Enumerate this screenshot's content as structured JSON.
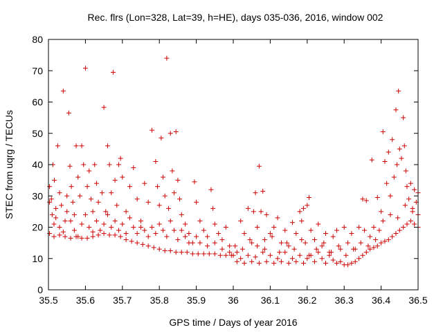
{
  "chart_data": {
    "type": "scatter",
    "title": "Rec. flrs (Lon=328, Lat=39, h=HE), days 035-036, 2016, window 002",
    "xlabel": "GPS time / Days of year 2016",
    "ylabel": "STEC from uqrg / TECUs",
    "xlim": [
      35.5,
      36.5
    ],
    "ylim": [
      0,
      80
    ],
    "xticks": [
      "35.5",
      "35.6",
      "35.7",
      "35.8",
      "35.9",
      "36",
      "36.1",
      "36.2",
      "36.3",
      "36.4",
      "36.5"
    ],
    "yticks": [
      "0",
      "10",
      "20",
      "30",
      "40",
      "50",
      "60",
      "70",
      "80"
    ],
    "marker": "+",
    "series_color": "#cc0000",
    "series": [
      {
        "name": "STEC",
        "points": [
          [
            35.503,
            33
          ],
          [
            35.508,
            29
          ],
          [
            35.512,
            40
          ],
          [
            35.516,
            35
          ],
          [
            35.52,
            26
          ],
          [
            35.525,
            46
          ],
          [
            35.53,
            31
          ],
          [
            35.535,
            27
          ],
          [
            35.54,
            63.5
          ],
          [
            35.545,
            22
          ],
          [
            35.55,
            30
          ],
          [
            35.555,
            56.5
          ],
          [
            35.558,
            39.5
          ],
          [
            35.562,
            33
          ],
          [
            35.566,
            28
          ],
          [
            35.57,
            24
          ],
          [
            35.575,
            46
          ],
          [
            35.58,
            36
          ],
          [
            35.585,
            30
          ],
          [
            35.59,
            46
          ],
          [
            35.595,
            40
          ],
          [
            35.6,
            70.8
          ],
          [
            35.605,
            33
          ],
          [
            35.61,
            38
          ],
          [
            35.615,
            29
          ],
          [
            35.62,
            25
          ],
          [
            35.625,
            40
          ],
          [
            35.63,
            34
          ],
          [
            35.635,
            28
          ],
          [
            35.645,
            31
          ],
          [
            35.65,
            58.3
          ],
          [
            35.655,
            25
          ],
          [
            35.66,
            46
          ],
          [
            35.665,
            40
          ],
          [
            35.67,
            31
          ],
          [
            35.675,
            69.5
          ],
          [
            35.68,
            35
          ],
          [
            35.685,
            27
          ],
          [
            35.69,
            40
          ],
          [
            35.695,
            42
          ],
          [
            35.7,
            36
          ],
          [
            35.71,
            25
          ],
          [
            35.72,
            33
          ],
          [
            35.73,
            39
          ],
          [
            35.74,
            29
          ],
          [
            35.75,
            20
          ],
          [
            35.76,
            34
          ],
          [
            35.77,
            28
          ],
          [
            35.78,
            51
          ],
          [
            35.79,
            41
          ],
          [
            35.795,
            33
          ],
          [
            35.8,
            27
          ],
          [
            35.805,
            48.5
          ],
          [
            35.81,
            36
          ],
          [
            35.815,
            30
          ],
          [
            35.82,
            74
          ],
          [
            35.825,
            26
          ],
          [
            35.83,
            50
          ],
          [
            35.835,
            38
          ],
          [
            35.84,
            31
          ],
          [
            35.845,
            50.5
          ],
          [
            35.85,
            35
          ],
          [
            35.855,
            29
          ],
          [
            35.86,
            24
          ],
          [
            35.87,
            21
          ],
          [
            35.88,
            18
          ],
          [
            35.89,
            15
          ],
          [
            35.895,
            34.5
          ],
          [
            35.9,
            28
          ],
          [
            35.91,
            22
          ],
          [
            35.92,
            19
          ],
          [
            35.93,
            17
          ],
          [
            35.94,
            32
          ],
          [
            35.945,
            26
          ],
          [
            35.95,
            21
          ],
          [
            35.96,
            18
          ],
          [
            35.97,
            16
          ],
          [
            35.98,
            20
          ],
          [
            35.99,
            14
          ],
          [
            35.503,
            28
          ],
          [
            35.51,
            24
          ],
          [
            35.515,
            21
          ],
          [
            35.52,
            23
          ],
          [
            35.53,
            20
          ],
          [
            35.54,
            18.5
          ],
          [
            35.55,
            25
          ],
          [
            35.56,
            22
          ],
          [
            35.57,
            19
          ],
          [
            35.58,
            17
          ],
          [
            35.59,
            21
          ],
          [
            35.6,
            24
          ],
          [
            35.61,
            20
          ],
          [
            35.62,
            18.5
          ],
          [
            35.63,
            22
          ],
          [
            35.64,
            19
          ],
          [
            35.65,
            21
          ],
          [
            35.66,
            24
          ],
          [
            35.67,
            20
          ],
          [
            35.68,
            22
          ],
          [
            35.69,
            19
          ],
          [
            35.7,
            21
          ],
          [
            35.71,
            18
          ],
          [
            35.72,
            23
          ],
          [
            35.73,
            20
          ],
          [
            35.74,
            18
          ],
          [
            35.75,
            22
          ],
          [
            35.76,
            19
          ],
          [
            35.77,
            17
          ],
          [
            35.78,
            20
          ],
          [
            35.79,
            18
          ],
          [
            35.8,
            21
          ],
          [
            35.81,
            19
          ],
          [
            35.82,
            17
          ],
          [
            35.83,
            22
          ],
          [
            35.84,
            19
          ],
          [
            35.85,
            16
          ],
          [
            35.86,
            19
          ],
          [
            35.87,
            17
          ],
          [
            35.88,
            15
          ],
          [
            35.9,
            17
          ],
          [
            35.91,
            15
          ],
          [
            35.93,
            14
          ],
          [
            35.95,
            15
          ],
          [
            35.97,
            13
          ],
          [
            35.99,
            12
          ],
          [
            35.503,
            18
          ],
          [
            35.515,
            17
          ],
          [
            35.53,
            17.5
          ],
          [
            35.545,
            17
          ],
          [
            35.56,
            16.5
          ],
          [
            35.575,
            17
          ],
          [
            35.59,
            16.5
          ],
          [
            35.605,
            16.5
          ],
          [
            35.62,
            17
          ],
          [
            35.635,
            17.5
          ],
          [
            35.65,
            18
          ],
          [
            35.665,
            17.5
          ],
          [
            35.68,
            17.5
          ],
          [
            35.695,
            17
          ],
          [
            35.71,
            16
          ],
          [
            35.725,
            15.5
          ],
          [
            35.74,
            15
          ],
          [
            35.755,
            14.5
          ],
          [
            35.77,
            14
          ],
          [
            35.785,
            13.5
          ],
          [
            35.8,
            13
          ],
          [
            35.815,
            12.5
          ],
          [
            35.83,
            12.5
          ],
          [
            35.845,
            12
          ],
          [
            35.86,
            12
          ],
          [
            35.875,
            12
          ],
          [
            35.89,
            11.5
          ],
          [
            35.905,
            11.5
          ],
          [
            35.92,
            11.5
          ],
          [
            35.935,
            11.5
          ],
          [
            35.95,
            11.5
          ],
          [
            35.965,
            11
          ],
          [
            35.98,
            11
          ],
          [
            35.995,
            11
          ],
          [
            36.01,
            12
          ],
          [
            36.02,
            22
          ],
          [
            36.03,
            18
          ],
          [
            36.04,
            26
          ],
          [
            36.05,
            15
          ],
          [
            36.055,
            25
          ],
          [
            36.06,
            31
          ],
          [
            36.065,
            20
          ],
          [
            36.07,
            39.5
          ],
          [
            36.075,
            25
          ],
          [
            36.08,
            31.5
          ],
          [
            36.085,
            16
          ],
          [
            36.09,
            24
          ],
          [
            36.1,
            18
          ],
          [
            36.11,
            20
          ],
          [
            36.12,
            23
          ],
          [
            36.13,
            15
          ],
          [
            36.14,
            19
          ],
          [
            36.15,
            14
          ],
          [
            36.16,
            21.5
          ],
          [
            36.17,
            18
          ],
          [
            36.18,
            25
          ],
          [
            36.185,
            22
          ],
          [
            36.19,
            26
          ],
          [
            36.195,
            15
          ],
          [
            36.2,
            27
          ],
          [
            36.205,
            29.5
          ],
          [
            36.21,
            19
          ],
          [
            36.22,
            16
          ],
          [
            36.23,
            21
          ],
          [
            36.24,
            14
          ],
          [
            36.25,
            18
          ],
          [
            36.26,
            12
          ],
          [
            36.27,
            17
          ],
          [
            36.28,
            19
          ],
          [
            36.29,
            13
          ],
          [
            36.3,
            20
          ],
          [
            36.31,
            15
          ],
          [
            36.32,
            18
          ],
          [
            36.33,
            13
          ],
          [
            36.34,
            20
          ],
          [
            36.35,
            29
          ],
          [
            36.355,
            19
          ],
          [
            36.36,
            28.5
          ],
          [
            36.37,
            17
          ],
          [
            36.375,
            41.5
          ],
          [
            36.38,
            20
          ],
          [
            36.39,
            29.5
          ],
          [
            36.395,
            19
          ],
          [
            36.4,
            25
          ],
          [
            36.405,
            50.5
          ],
          [
            36.41,
            41
          ],
          [
            36.415,
            34
          ],
          [
            36.42,
            44
          ],
          [
            36.425,
            30
          ],
          [
            36.43,
            48
          ],
          [
            36.435,
            36
          ],
          [
            36.44,
            57.5
          ],
          [
            36.443,
            40
          ],
          [
            36.447,
            63.5
          ],
          [
            36.45,
            45
          ],
          [
            36.455,
            42
          ],
          [
            36.46,
            55
          ],
          [
            36.463,
            46
          ],
          [
            36.467,
            38
          ],
          [
            36.47,
            33
          ],
          [
            36.475,
            29
          ],
          [
            36.48,
            34
          ],
          [
            36.485,
            25
          ],
          [
            36.49,
            32
          ],
          [
            36.495,
            28
          ],
          [
            36.5,
            31
          ],
          [
            36.0,
            11
          ],
          [
            36.01,
            9
          ],
          [
            36.02,
            10
          ],
          [
            36.03,
            8.5
          ],
          [
            36.04,
            11
          ],
          [
            36.05,
            9
          ],
          [
            36.06,
            10.5
          ],
          [
            36.07,
            8.5
          ],
          [
            36.08,
            12
          ],
          [
            36.09,
            9
          ],
          [
            36.1,
            11
          ],
          [
            36.11,
            8.5
          ],
          [
            36.12,
            10
          ],
          [
            36.13,
            9
          ],
          [
            36.14,
            12
          ],
          [
            36.15,
            8.5
          ],
          [
            36.16,
            10
          ],
          [
            36.17,
            9
          ],
          [
            36.18,
            11
          ],
          [
            36.19,
            8.5
          ],
          [
            36.2,
            10
          ],
          [
            36.21,
            11
          ],
          [
            36.22,
            9
          ],
          [
            36.23,
            12
          ],
          [
            36.24,
            10
          ],
          [
            36.25,
            8.5
          ],
          [
            36.26,
            11
          ],
          [
            36.27,
            9.5
          ],
          [
            36.28,
            8.5
          ],
          [
            36.29,
            9
          ],
          [
            36.3,
            8
          ],
          [
            36.31,
            8
          ],
          [
            36.32,
            8.5
          ],
          [
            36.33,
            9
          ],
          [
            36.34,
            10
          ],
          [
            36.35,
            11
          ],
          [
            36.36,
            12
          ],
          [
            36.37,
            13
          ],
          [
            36.38,
            13.5
          ],
          [
            36.39,
            14
          ],
          [
            36.4,
            15
          ],
          [
            36.41,
            15.5
          ],
          [
            36.42,
            16
          ],
          [
            36.43,
            17
          ],
          [
            36.44,
            18
          ],
          [
            36.45,
            19
          ],
          [
            36.46,
            20
          ],
          [
            36.47,
            21
          ],
          [
            36.48,
            22
          ],
          [
            36.49,
            21
          ],
          [
            36.5,
            20
          ],
          [
            36.005,
            14
          ],
          [
            36.025,
            13
          ],
          [
            36.045,
            16
          ],
          [
            36.065,
            14
          ],
          [
            36.085,
            13
          ],
          [
            36.105,
            17
          ],
          [
            36.125,
            12
          ],
          [
            36.145,
            15
          ],
          [
            36.165,
            13
          ],
          [
            36.185,
            16
          ],
          [
            36.205,
            11
          ],
          [
            36.225,
            13
          ],
          [
            36.245,
            15
          ],
          [
            36.265,
            12
          ],
          [
            36.285,
            14
          ],
          [
            36.305,
            11
          ],
          [
            36.325,
            13
          ],
          [
            36.345,
            15
          ],
          [
            36.365,
            14
          ],
          [
            36.385,
            16
          ],
          [
            36.405,
            22
          ],
          [
            36.425,
            24
          ],
          [
            36.445,
            23
          ],
          [
            36.465,
            27
          ],
          [
            36.485,
            26
          ],
          [
            36.5,
            24
          ]
        ]
      }
    ]
  }
}
